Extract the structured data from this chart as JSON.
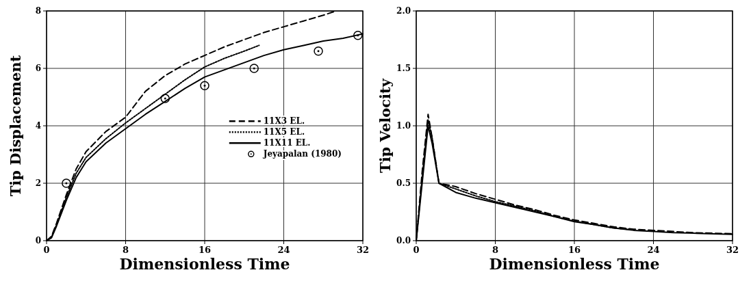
{
  "chart_data": [
    {
      "type": "line",
      "xlabel": "Dimensionless Time",
      "ylabel": "Tip Displacement",
      "xlim": [
        0,
        32
      ],
      "xticks": [
        0,
        8,
        16,
        24,
        32
      ],
      "ylim": [
        0,
        8
      ],
      "yticks": [
        0,
        2,
        4,
        6,
        8
      ],
      "grid": true,
      "legend": "right",
      "series": [
        {
          "name": "11X3 EL.",
          "color": "#000000",
          "line_style": "dashed",
          "x": [
            0,
            0.5,
            1,
            2,
            3,
            4,
            6,
            8,
            10,
            12,
            14,
            16,
            18,
            20,
            22,
            24,
            26,
            28,
            29.3
          ],
          "values": [
            0,
            0.15,
            0.6,
            1.6,
            2.5,
            3.1,
            3.8,
            4.3,
            5.2,
            5.75,
            6.15,
            6.45,
            6.75,
            7.0,
            7.25,
            7.45,
            7.65,
            7.85,
            8.0
          ]
        },
        {
          "name": "11X5 EL.",
          "color": "#000000",
          "line_style": "dotted",
          "x": [
            0,
            0.5,
            1,
            2,
            3,
            4,
            6,
            8,
            10,
            12,
            14,
            16,
            18,
            20,
            21.5
          ],
          "values": [
            0,
            0.12,
            0.55,
            1.5,
            2.35,
            2.9,
            3.55,
            4.1,
            4.6,
            5.1,
            5.6,
            6.05,
            6.35,
            6.6,
            6.8
          ]
        },
        {
          "name": "11X11 EL.",
          "color": "#000000",
          "line_style": "solid",
          "x": [
            0,
            0.5,
            1,
            2,
            3,
            4,
            6,
            8,
            10,
            12,
            14,
            16,
            18,
            20,
            22,
            24,
            26,
            28,
            30,
            32
          ],
          "values": [
            0,
            0.1,
            0.5,
            1.4,
            2.2,
            2.75,
            3.4,
            3.9,
            4.4,
            4.85,
            5.3,
            5.7,
            5.95,
            6.2,
            6.45,
            6.65,
            6.8,
            6.95,
            7.05,
            7.2
          ]
        },
        {
          "name": "Jeyapalan (1980)",
          "type": "scatter",
          "marker": "circle",
          "color": "#000000",
          "x": [
            2,
            12,
            16,
            21,
            27.5,
            31.5
          ],
          "values": [
            2.0,
            4.95,
            5.4,
            6.0,
            6.6,
            7.15
          ]
        }
      ]
    },
    {
      "type": "line",
      "xlabel": "Dimensionless Time",
      "ylabel": "Tip Velocity",
      "xlim": [
        0,
        32
      ],
      "xticks": [
        0,
        8,
        16,
        24,
        32
      ],
      "ylim": [
        0,
        2
      ],
      "yticks": [
        {
          "value": 0,
          "label": "0.0"
        },
        {
          "value": 0.5,
          "label": "0.5"
        },
        {
          "value": 1,
          "label": "1.0"
        },
        {
          "value": 1.5,
          "label": "1.5"
        },
        {
          "value": 2,
          "label": "2.0"
        }
      ],
      "grid": true,
      "series": [
        {
          "color": "#000000",
          "line_style": "dashed",
          "x": [
            0,
            0.6,
            1.2,
            1.6,
            2.3,
            4,
            6,
            8,
            10,
            12,
            14,
            16,
            18,
            20,
            22,
            24,
            26,
            28,
            30,
            32
          ],
          "values": [
            0,
            0.6,
            1.1,
            0.9,
            0.5,
            0.47,
            0.41,
            0.36,
            0.31,
            0.27,
            0.22,
            0.18,
            0.15,
            0.12,
            0.1,
            0.09,
            0.08,
            0.07,
            0.065,
            0.06
          ]
        },
        {
          "color": "#000000",
          "line_style": "dotted",
          "x": [
            0,
            0.6,
            1.2,
            1.6,
            2.3,
            4,
            6,
            8,
            10,
            12,
            14,
            16,
            18,
            20,
            22
          ],
          "values": [
            0,
            0.55,
            1.05,
            0.9,
            0.5,
            0.45,
            0.39,
            0.34,
            0.3,
            0.26,
            0.21,
            0.17,
            0.14,
            0.11,
            0.095
          ]
        },
        {
          "color": "#000000",
          "line_style": "solid",
          "x": [
            0,
            0.6,
            1.2,
            1.6,
            2.3,
            4,
            6,
            8,
            10,
            12,
            14,
            16,
            18,
            20,
            22,
            24,
            26,
            28,
            30,
            32
          ],
          "values": [
            0,
            0.5,
            1.0,
            0.85,
            0.5,
            0.42,
            0.37,
            0.33,
            0.29,
            0.25,
            0.21,
            0.165,
            0.14,
            0.11,
            0.09,
            0.08,
            0.07,
            0.065,
            0.06,
            0.055
          ]
        }
      ]
    }
  ]
}
